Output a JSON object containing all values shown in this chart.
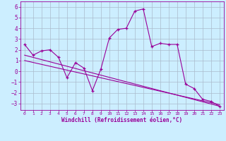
{
  "xlabel": "Windchill (Refroidissement éolien,°C)",
  "background_color": "#cceeff",
  "line_color": "#990099",
  "grid_color": "#aabbcc",
  "xlim": [
    -0.5,
    23.5
  ],
  "ylim": [
    -3.6,
    6.5
  ],
  "xticks": [
    0,
    1,
    2,
    3,
    4,
    5,
    6,
    7,
    8,
    9,
    10,
    11,
    12,
    13,
    14,
    15,
    16,
    17,
    18,
    19,
    20,
    21,
    22,
    23
  ],
  "yticks": [
    -3,
    -2,
    -1,
    0,
    1,
    2,
    3,
    4,
    5,
    6
  ],
  "series1_x": [
    0,
    1,
    2,
    3,
    4,
    5,
    6,
    7,
    8,
    9,
    10,
    11,
    12,
    13,
    14,
    15,
    16,
    17,
    18,
    19,
    20,
    21,
    22,
    23
  ],
  "series1_y": [
    2.5,
    1.5,
    1.9,
    2.0,
    1.3,
    -0.6,
    0.8,
    0.3,
    -1.8,
    0.2,
    3.1,
    3.9,
    4.0,
    5.6,
    5.8,
    2.3,
    2.6,
    2.5,
    2.5,
    -1.2,
    -1.6,
    -2.6,
    -2.8,
    -3.25
  ],
  "series2_x": [
    0,
    23
  ],
  "series2_y": [
    1.5,
    -3.25
  ],
  "series3_x": [
    0,
    23
  ],
  "series3_y": [
    1.0,
    -3.1
  ]
}
